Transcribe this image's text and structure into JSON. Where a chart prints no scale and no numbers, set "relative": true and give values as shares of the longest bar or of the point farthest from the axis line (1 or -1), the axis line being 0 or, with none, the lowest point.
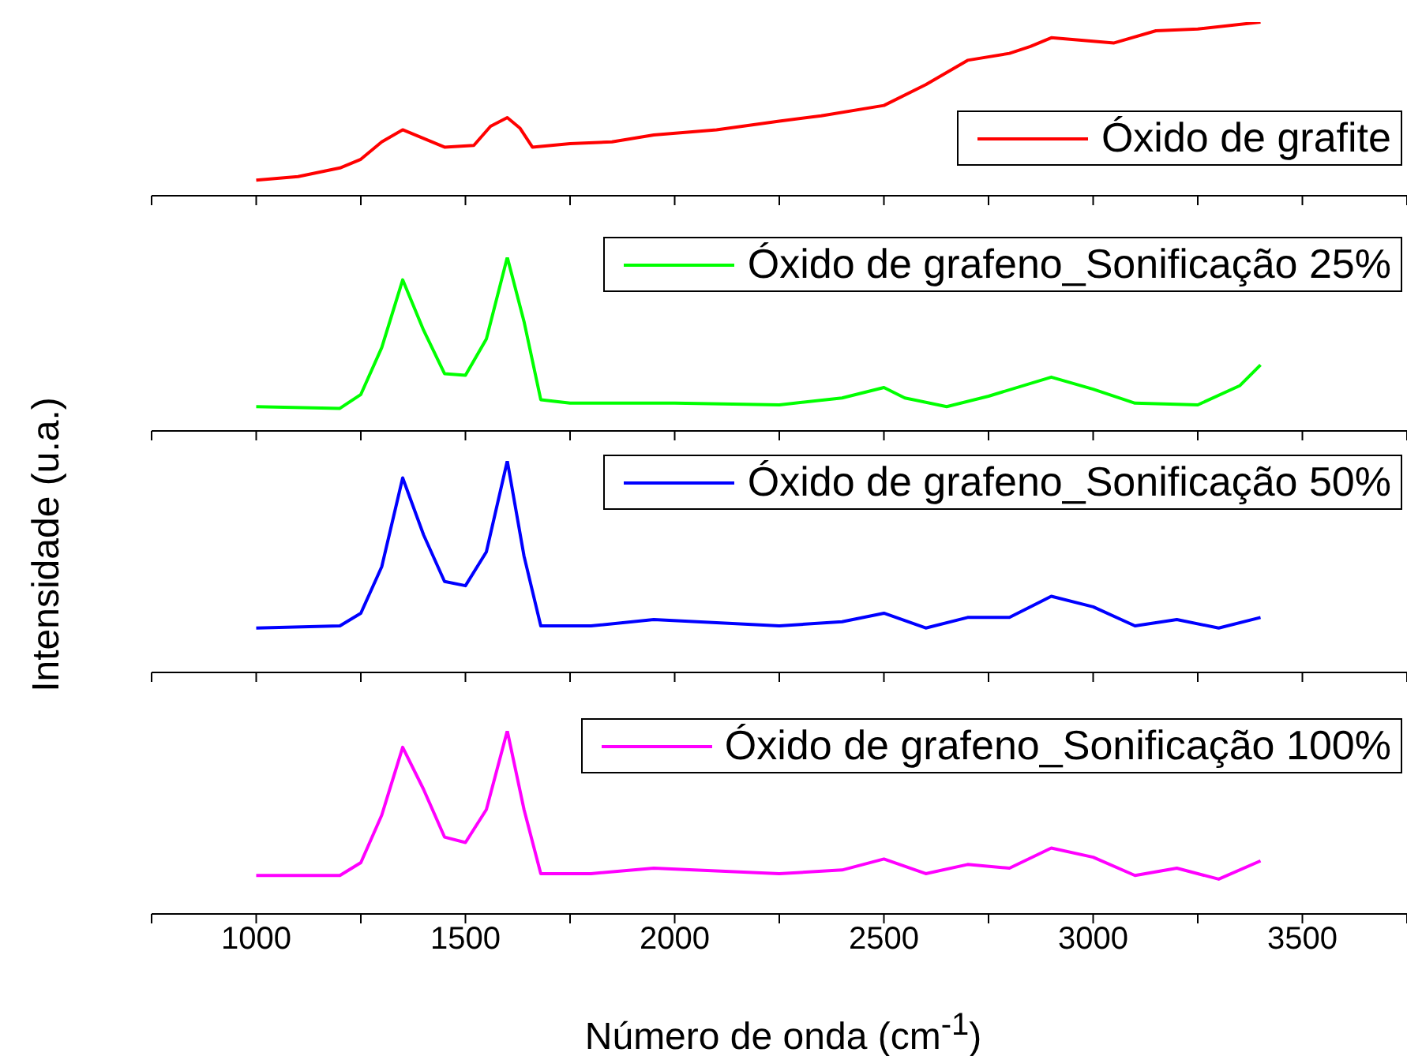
{
  "chart_data": [
    {
      "type": "line",
      "relative": true,
      "ylabel": "Intensidade (u.a.)",
      "legend": "right",
      "tick_labels": false,
      "xlim": [
        750,
        3750
      ],
      "xticks": [
        {
          "value": 750,
          "label": null
        },
        {
          "value": 1000,
          "label": null
        },
        {
          "value": 1250,
          "label": null
        },
        {
          "value": 1500,
          "label": null
        },
        {
          "value": 1750,
          "label": null
        },
        {
          "value": 2000,
          "label": null
        },
        {
          "value": 2250,
          "label": null
        },
        {
          "value": 2500,
          "label": null
        },
        {
          "value": 2750,
          "label": null
        },
        {
          "value": 3000,
          "label": null
        },
        {
          "value": 3250,
          "label": null
        },
        {
          "value": 3500,
          "label": null
        },
        {
          "value": 3750,
          "label": null
        }
      ],
      "x": [
        1000,
        1100,
        1200,
        1250,
        1300,
        1350,
        1400,
        1450,
        1520,
        1560,
        1600,
        1630,
        1660,
        1750,
        1850,
        1950,
        2100,
        2250,
        2350,
        2500,
        2600,
        2700,
        2800,
        2850,
        2900,
        3000,
        3050,
        3150,
        3250,
        3400
      ],
      "series": [
        {
          "name": "Óxido de grafite",
          "color": "#ff0000",
          "values": [
            0.09,
            0.11,
            0.16,
            0.21,
            0.31,
            0.38,
            0.33,
            0.28,
            0.29,
            0.4,
            0.45,
            0.39,
            0.28,
            0.3,
            0.31,
            0.35,
            0.38,
            0.43,
            0.46,
            0.52,
            0.64,
            0.78,
            0.82,
            0.86,
            0.91,
            0.89,
            0.88,
            0.95,
            0.96,
            1.0
          ]
        }
      ]
    },
    {
      "type": "line",
      "relative": true,
      "legend": "top right",
      "tick_labels": false,
      "xlim": [
        750,
        3750
      ],
      "xticks": [
        {
          "value": 750,
          "label": null
        },
        {
          "value": 1000,
          "label": null
        },
        {
          "value": 1250,
          "label": null
        },
        {
          "value": 1500,
          "label": null
        },
        {
          "value": 1750,
          "label": null
        },
        {
          "value": 2000,
          "label": null
        },
        {
          "value": 2250,
          "label": null
        },
        {
          "value": 2500,
          "label": null
        },
        {
          "value": 2750,
          "label": null
        },
        {
          "value": 3000,
          "label": null
        },
        {
          "value": 3250,
          "label": null
        },
        {
          "value": 3500,
          "label": null
        },
        {
          "value": 3750,
          "label": null
        }
      ],
      "x": [
        1000,
        1200,
        1250,
        1300,
        1350,
        1400,
        1450,
        1500,
        1550,
        1600,
        1640,
        1680,
        1750,
        2000,
        2250,
        2400,
        2500,
        2550,
        2650,
        2750,
        2900,
        3000,
        3100,
        3250,
        3350,
        3400
      ],
      "series": [
        {
          "name": "Óxido de grafeno_Sonificação 25%",
          "color": "#00ff00",
          "values": [
            0.14,
            0.13,
            0.21,
            0.48,
            0.87,
            0.58,
            0.33,
            0.32,
            0.53,
            1.0,
            0.63,
            0.18,
            0.16,
            0.16,
            0.15,
            0.19,
            0.25,
            0.19,
            0.14,
            0.2,
            0.31,
            0.24,
            0.16,
            0.15,
            0.26,
            0.38
          ]
        }
      ]
    },
    {
      "type": "line",
      "relative": true,
      "legend": "top right",
      "tick_labels": false,
      "xlim": [
        750,
        3750
      ],
      "xticks": [
        {
          "value": 750,
          "label": null
        },
        {
          "value": 1000,
          "label": null
        },
        {
          "value": 1250,
          "label": null
        },
        {
          "value": 1500,
          "label": null
        },
        {
          "value": 1750,
          "label": null
        },
        {
          "value": 2000,
          "label": null
        },
        {
          "value": 2250,
          "label": null
        },
        {
          "value": 2500,
          "label": null
        },
        {
          "value": 2750,
          "label": null
        },
        {
          "value": 3000,
          "label": null
        },
        {
          "value": 3250,
          "label": null
        },
        {
          "value": 3500,
          "label": null
        },
        {
          "value": 3750,
          "label": null
        }
      ],
      "x": [
        1000,
        1200,
        1250,
        1300,
        1350,
        1400,
        1450,
        1500,
        1550,
        1600,
        1640,
        1680,
        1800,
        1950,
        2250,
        2400,
        2500,
        2600,
        2700,
        2800,
        2900,
        3000,
        3100,
        3200,
        3300,
        3400
      ],
      "series": [
        {
          "name": "Óxido de grafeno_Sonificação 50%",
          "color": "#0000ff",
          "values": [
            0.21,
            0.22,
            0.28,
            0.5,
            0.92,
            0.65,
            0.43,
            0.41,
            0.57,
            1.0,
            0.55,
            0.22,
            0.22,
            0.25,
            0.22,
            0.24,
            0.28,
            0.21,
            0.26,
            0.26,
            0.36,
            0.31,
            0.22,
            0.25,
            0.21,
            0.26
          ]
        }
      ]
    },
    {
      "type": "line",
      "relative": true,
      "legend": "top right",
      "tick_labels": "x",
      "xlabel": "Número de onda (cm$^{-1}$)",
      "xlim": [
        750,
        3750
      ],
      "xticks": [
        {
          "value": 750,
          "label": null
        },
        1000,
        {
          "value": 1250,
          "label": null
        },
        1500,
        {
          "value": 1750,
          "label": null
        },
        2000,
        {
          "value": 2250,
          "label": null
        },
        2500,
        {
          "value": 2750,
          "label": null
        },
        3000,
        {
          "value": 3250,
          "label": null
        },
        3500,
        {
          "value": 3750,
          "label": null
        }
      ],
      "x": [
        1000,
        1200,
        1250,
        1300,
        1350,
        1400,
        1450,
        1500,
        1550,
        1600,
        1640,
        1680,
        1800,
        1950,
        2250,
        2400,
        2500,
        2600,
        2700,
        2800,
        2900,
        3000,
        3100,
        3200,
        3300,
        3400
      ],
      "series": [
        {
          "name": "Óxido de grafeno_Sonificação 100%",
          "color": "#ff00ff",
          "values": [
            0.21,
            0.21,
            0.28,
            0.54,
            0.91,
            0.68,
            0.42,
            0.39,
            0.57,
            1.0,
            0.57,
            0.22,
            0.22,
            0.25,
            0.22,
            0.24,
            0.3,
            0.22,
            0.27,
            0.25,
            0.36,
            0.31,
            0.21,
            0.25,
            0.19,
            0.29
          ]
        }
      ]
    }
  ]
}
